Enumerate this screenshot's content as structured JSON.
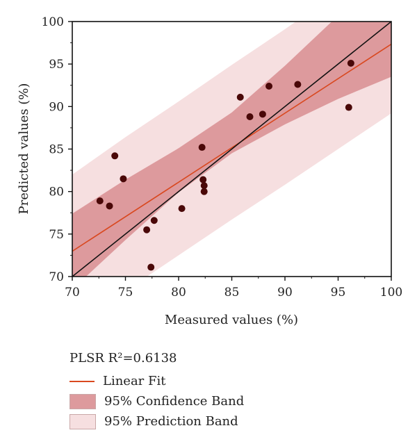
{
  "chart_data": {
    "type": "scatter",
    "xlabel": "Measured values (%)",
    "ylabel": "Predicted values (%)",
    "xlim": [
      70,
      100
    ],
    "ylim": [
      70,
      100
    ],
    "xticks": [
      "70",
      "75",
      "80",
      "85",
      "90",
      "95",
      "100"
    ],
    "yticks": [
      "70",
      "75",
      "80",
      "85",
      "90",
      "95",
      "100"
    ],
    "points": [
      {
        "x": 72.6,
        "y": 78.9
      },
      {
        "x": 73.5,
        "y": 78.3
      },
      {
        "x": 74.0,
        "y": 84.2
      },
      {
        "x": 74.8,
        "y": 81.5
      },
      {
        "x": 77.0,
        "y": 75.5
      },
      {
        "x": 77.4,
        "y": 71.1
      },
      {
        "x": 77.7,
        "y": 76.6
      },
      {
        "x": 80.3,
        "y": 78.0
      },
      {
        "x": 82.2,
        "y": 85.2
      },
      {
        "x": 82.3,
        "y": 81.4
      },
      {
        "x": 82.4,
        "y": 80.7
      },
      {
        "x": 82.4,
        "y": 80.0
      },
      {
        "x": 85.8,
        "y": 91.1
      },
      {
        "x": 86.7,
        "y": 88.8
      },
      {
        "x": 87.9,
        "y": 89.1
      },
      {
        "x": 88.5,
        "y": 92.4
      },
      {
        "x": 91.2,
        "y": 92.6
      },
      {
        "x": 96.0,
        "y": 89.9
      },
      {
        "x": 96.2,
        "y": 95.1
      }
    ],
    "identity_line": [
      [
        70,
        70
      ],
      [
        100,
        100
      ]
    ],
    "fit": {
      "slope": 0.812,
      "intercept": 16.14
    },
    "confidence_band": {
      "x": [
        70,
        75,
        80,
        85,
        90,
        95,
        100
      ],
      "lower": [
        68.5,
        74.3,
        79.9,
        84.5,
        87.9,
        90.9,
        93.5
      ],
      "upper": [
        77.4,
        81.4,
        85.1,
        89.3,
        94.8,
        100.7,
        106.6
      ]
    },
    "prediction_band": {
      "x": [
        70,
        75,
        80,
        85,
        90,
        95,
        100
      ],
      "lower": [
        63.9,
        68.3,
        72.5,
        76.7,
        80.8,
        85.0,
        89.2
      ],
      "upper": [
        82.0,
        86.4,
        90.6,
        94.9,
        99.1,
        103.5,
        107.9
      ]
    },
    "colors": {
      "points": "#4a0808",
      "fit_line": "#d9481f",
      "identity_line": "#111111",
      "confidence_band": "#dd9a9d",
      "prediction_band": "#f6dfe0"
    },
    "legend": {
      "placement": "below",
      "title": "PLSR R²=0.6138",
      "items": [
        "Linear Fit",
        "95% Confidence Band",
        "95% Prediction Band"
      ]
    }
  }
}
